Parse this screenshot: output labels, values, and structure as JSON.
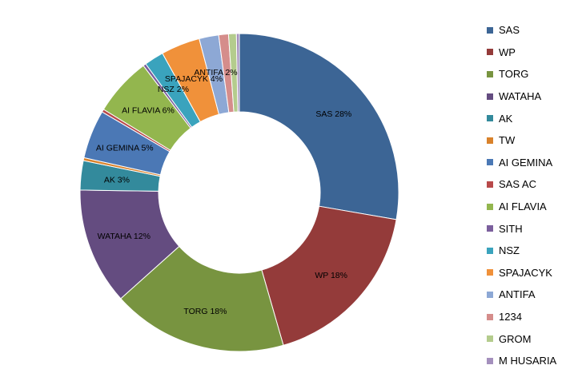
{
  "chart_data": {
    "type": "pie",
    "donut": true,
    "legend_position": "right",
    "slices": [
      {
        "name": "SAS",
        "value": 28,
        "label": "SAS 28%",
        "color": "#3C6595"
      },
      {
        "name": "WP",
        "value": 18,
        "label": "WP 18%",
        "color": "#943B3A"
      },
      {
        "name": "TORG",
        "value": 18,
        "label": "TORG 18%",
        "color": "#789440"
      },
      {
        "name": "WATAHA",
        "value": 12,
        "label": "WATAHA 12%",
        "color": "#644C80"
      },
      {
        "name": "AK",
        "value": 3,
        "label": "AK 3%",
        "color": "#338A9C"
      },
      {
        "name": "TW",
        "value": 0.3,
        "label": "",
        "color": "#D9822B"
      },
      {
        "name": "AI GEMINA",
        "value": 5,
        "label": "AI GEMINA 5%",
        "color": "#4B78B5"
      },
      {
        "name": "SAS AC",
        "value": 0.3,
        "label": "",
        "color": "#B8494A"
      },
      {
        "name": "AI FLAVIA",
        "value": 6,
        "label": "AI FLAVIA 6%",
        "color": "#93B64E"
      },
      {
        "name": "SITH",
        "value": 0.3,
        "label": "",
        "color": "#7B5F9D"
      },
      {
        "name": "NSZ",
        "value": 2,
        "label": "NSZ 2%",
        "color": "#3AA3BD"
      },
      {
        "name": "SPAJACYK",
        "value": 4,
        "label": "SPAJACYK 4%",
        "color": "#F0913A"
      },
      {
        "name": "ANTIFA",
        "value": 2,
        "label": "ANTIFA 2%",
        "color": "#8DA8D5"
      },
      {
        "name": "1234",
        "value": 1,
        "label": "",
        "color": "#D58D8B"
      },
      {
        "name": "GROM",
        "value": 0.8,
        "label": "",
        "color": "#B4CC8D"
      },
      {
        "name": "M HUSARIA",
        "value": 0.3,
        "label": "",
        "color": "#A490BD"
      }
    ]
  }
}
